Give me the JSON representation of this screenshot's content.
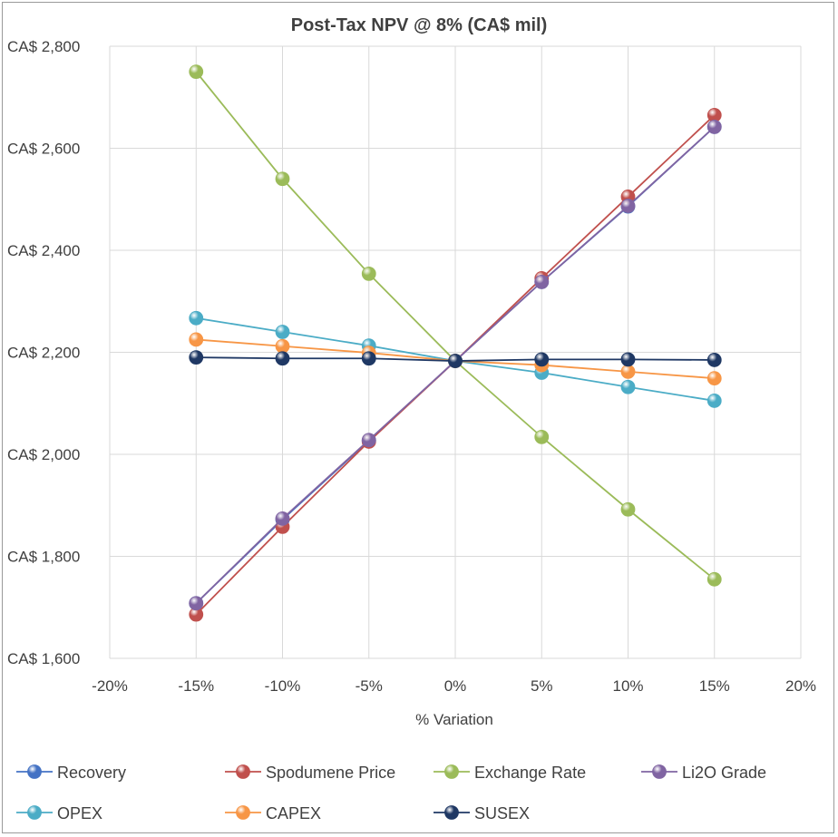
{
  "chart_data": {
    "type": "line",
    "title": "Post-Tax NPV @ 8% (CA$ mil)",
    "xlabel": "% Variation",
    "ylabel": "",
    "x": [
      -15,
      -10,
      -5,
      0,
      5,
      10,
      15
    ],
    "xlim": [
      -20,
      20
    ],
    "ylim": [
      1600,
      2800
    ],
    "x_ticks": [
      -20,
      -15,
      -10,
      -5,
      0,
      5,
      10,
      15,
      20
    ],
    "x_tick_labels": [
      "-20%",
      "-15%",
      "-10%",
      "-5%",
      "0%",
      "5%",
      "10%",
      "15%",
      "20%"
    ],
    "y_ticks": [
      1600,
      1800,
      2000,
      2200,
      2400,
      2600,
      2800
    ],
    "y_tick_labels": [
      "CA$ 1,600",
      "CA$ 1,800",
      "CA$ 2,000",
      "CA$ 2,200",
      "CA$ 2,400",
      "CA$ 2,600",
      "CA$ 2,800"
    ],
    "grid": true,
    "legend_position": "bottom",
    "series": [
      {
        "name": "Recovery",
        "color": "#4472c4",
        "values": [
          1708,
          1872,
          2027,
          2183,
          2338,
          2486,
          2642
        ]
      },
      {
        "name": "Spodumene Price",
        "color": "#c0504d",
        "values": [
          1686,
          1858,
          2025,
          2183,
          2345,
          2505,
          2665
        ]
      },
      {
        "name": "Exchange Rate",
        "color": "#9bbb59",
        "values": [
          2750,
          2540,
          2354,
          2183,
          2034,
          1892,
          1755
        ]
      },
      {
        "name": "Li2O Grade",
        "color": "#8064a2",
        "values": [
          1708,
          1874,
          2028,
          2183,
          2338,
          2487,
          2642
        ]
      },
      {
        "name": "OPEX",
        "color": "#4bacc6",
        "values": [
          2267,
          2240,
          2213,
          2183,
          2160,
          2132,
          2105
        ]
      },
      {
        "name": "CAPEX",
        "color": "#f79646",
        "values": [
          2225,
          2212,
          2199,
          2183,
          2175,
          2162,
          2149
        ]
      },
      {
        "name": "SUSEX",
        "color": "#1f3864",
        "values": [
          2190,
          2188,
          2188,
          2183,
          2186,
          2186,
          2185
        ]
      }
    ]
  }
}
